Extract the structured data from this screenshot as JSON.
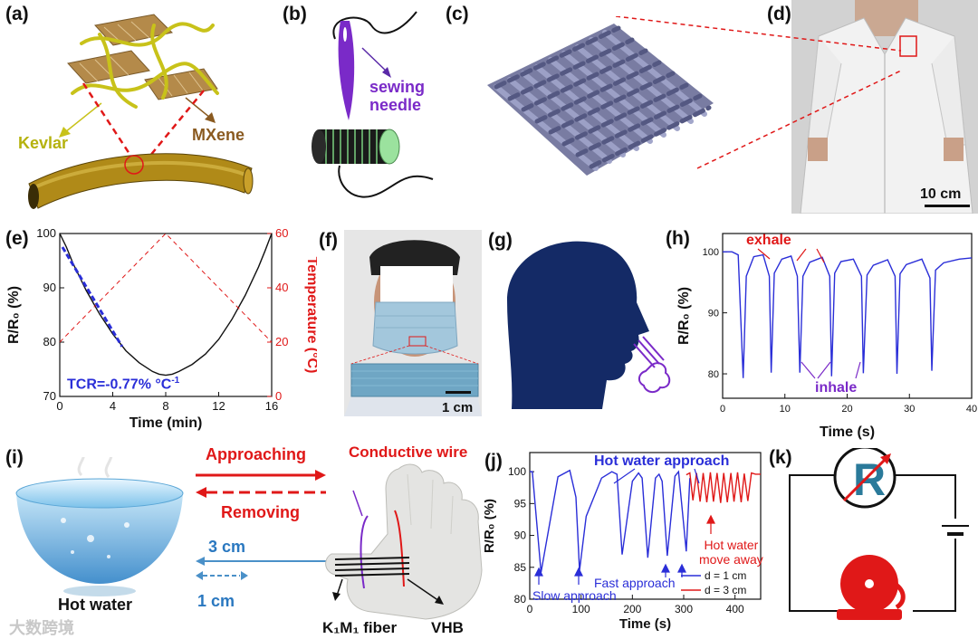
{
  "panels": {
    "a": {
      "label": "(a)",
      "kevlar": "Kevlar",
      "mxene": "MXene"
    },
    "b": {
      "label": "(b)",
      "needle": "sewing\nneedle"
    },
    "c": {
      "label": "(c)"
    },
    "d": {
      "label": "(d)",
      "scale": "10 cm"
    },
    "e": {
      "label": "(e)",
      "tcr": "TCR=-0.77% °C",
      "tcr_sup": "-1"
    },
    "f": {
      "label": "(f)",
      "scale": "1 cm"
    },
    "g": {
      "label": "(g)"
    },
    "h": {
      "label": "(h)",
      "exhale": "exhale",
      "inhale": "inhale"
    },
    "i": {
      "label": "(i)",
      "hot_water": "Hot water",
      "approaching": "Approaching",
      "removing": "Removing",
      "d3": "3 cm",
      "d1": "1 cm",
      "wire": "Conductive wire",
      "fiber": "K₁M₁ fiber",
      "vhb": "VHB"
    },
    "j": {
      "label": "(j)",
      "hot_approach": "Hot water approach",
      "move_away": "Hot water\nmove away",
      "slow": "Slow approach",
      "fast": "Fast approach"
    },
    "k": {
      "label": "(k)",
      "r": "R"
    }
  },
  "watermark": "大数跨境",
  "colors": {
    "blue": "#2a2ed8",
    "red": "#e01818",
    "navy": "#142a66",
    "black_curve": "#111111"
  },
  "chart_data": [
    {
      "id": "e",
      "type": "line",
      "xlabel": "Time (min)",
      "ylabel": "R/R₀ (%)",
      "ylabel_right": "Temperature (°C)",
      "xlim": [
        0,
        16
      ],
      "ylim": [
        70,
        100
      ],
      "ylim_right": [
        0,
        60
      ],
      "xticks": [
        0,
        4,
        8,
        12,
        16
      ],
      "yticks": [
        70,
        80,
        90,
        100
      ],
      "yticks_right": [
        0,
        20,
        40,
        60
      ],
      "series": [
        {
          "color": "#111111",
          "x": [
            0,
            0.5,
            1,
            2,
            3,
            4,
            5,
            6,
            7,
            7.5,
            8,
            8.5,
            9,
            10,
            11,
            12,
            13,
            14,
            15,
            15.5,
            16
          ],
          "y": [
            100,
            97.5,
            94.5,
            89.5,
            85.2,
            81.5,
            78.4,
            76.2,
            74.6,
            74.1,
            73.9,
            74.1,
            74.6,
            75.9,
            77.8,
            80.5,
            84.2,
            88.6,
            93.8,
            96.8,
            100
          ]
        },
        {
          "color": "#e01818",
          "dashed": true,
          "axis": "right",
          "x": [
            0,
            8,
            16
          ],
          "y": [
            20,
            60,
            20
          ]
        },
        {
          "color": "#2a2ed8",
          "dashed": true,
          "x": [
            0.2,
            4.7
          ],
          "y": [
            97.5,
            79.2
          ]
        }
      ]
    },
    {
      "id": "h",
      "type": "line",
      "xlabel": "Time (s)",
      "ylabel": "R/R₀ (%)",
      "xlim": [
        0,
        40
      ],
      "ylim": [
        76,
        103
      ],
      "xticks": [
        0,
        10,
        20,
        30,
        40
      ],
      "yticks": [
        80,
        90,
        100
      ],
      "series": [
        {
          "color": "#2a2ed8",
          "x": [
            0,
            1.5,
            2.5,
            3.3,
            3.8,
            5,
            6.5,
            7.5,
            7.8,
            8.3,
            9.5,
            11,
            12,
            12.4,
            12.9,
            14,
            16,
            17.2,
            17.5,
            18,
            19,
            21,
            22.3,
            22.6,
            23.2,
            24.2,
            26.5,
            27.7,
            28,
            28.5,
            29.5,
            32,
            33.3,
            33.6,
            34.2,
            35.5,
            38,
            40
          ],
          "y": [
            100,
            100,
            99.5,
            79.3,
            96,
            99.2,
            99.5,
            96,
            80.2,
            96.5,
            98.8,
            99.3,
            96,
            80.2,
            96,
            98.3,
            99.1,
            96,
            79.6,
            96.5,
            98.4,
            98.8,
            96,
            80.1,
            96.2,
            97.8,
            98.7,
            96,
            80.0,
            96.4,
            97.9,
            98.8,
            95.7,
            80.5,
            97,
            98.2,
            98.8,
            99
          ]
        }
      ]
    },
    {
      "id": "j",
      "type": "line",
      "xlabel": "Time (s)",
      "ylabel": "R/R₀ (%)",
      "xlim": [
        0,
        450
      ],
      "ylim": [
        80,
        103
      ],
      "xticks": [
        0,
        100,
        200,
        300,
        400
      ],
      "yticks": [
        80,
        85,
        90,
        95,
        100
      ],
      "legend": "bottom-right",
      "series": [
        {
          "name": "d = 1 cm",
          "color": "#2a2ed8",
          "x": [
            0,
            5,
            22,
            55,
            78,
            90,
            97,
            110,
            140,
            160,
            170,
            180,
            200,
            212,
            219,
            230,
            245,
            252,
            258,
            268,
            283,
            290,
            296,
            305,
            312
          ],
          "y": [
            100,
            100,
            84.2,
            99.2,
            100.2,
            96,
            84.5,
            93,
            99,
            100,
            99.6,
            87,
            98.5,
            99.8,
            99,
            86.5,
            99,
            99.6,
            98.5,
            86.8,
            99.3,
            100,
            95,
            87.5,
            99
          ]
        },
        {
          "name": "d = 3 cm",
          "color": "#e01818",
          "x": [
            305,
            312,
            318,
            325,
            332,
            338,
            345,
            352,
            358,
            365,
            372,
            378,
            385,
            392,
            398,
            405,
            412,
            418,
            425,
            432,
            440,
            450
          ],
          "y": [
            99.5,
            99.8,
            95.5,
            99.8,
            95.3,
            99.8,
            95.2,
            99.9,
            95.3,
            99.8,
            95.1,
            99.8,
            95.2,
            99.8,
            95.3,
            99.9,
            95.2,
            99.7,
            95.4,
            99.8,
            99.6,
            99.6
          ]
        }
      ]
    }
  ]
}
